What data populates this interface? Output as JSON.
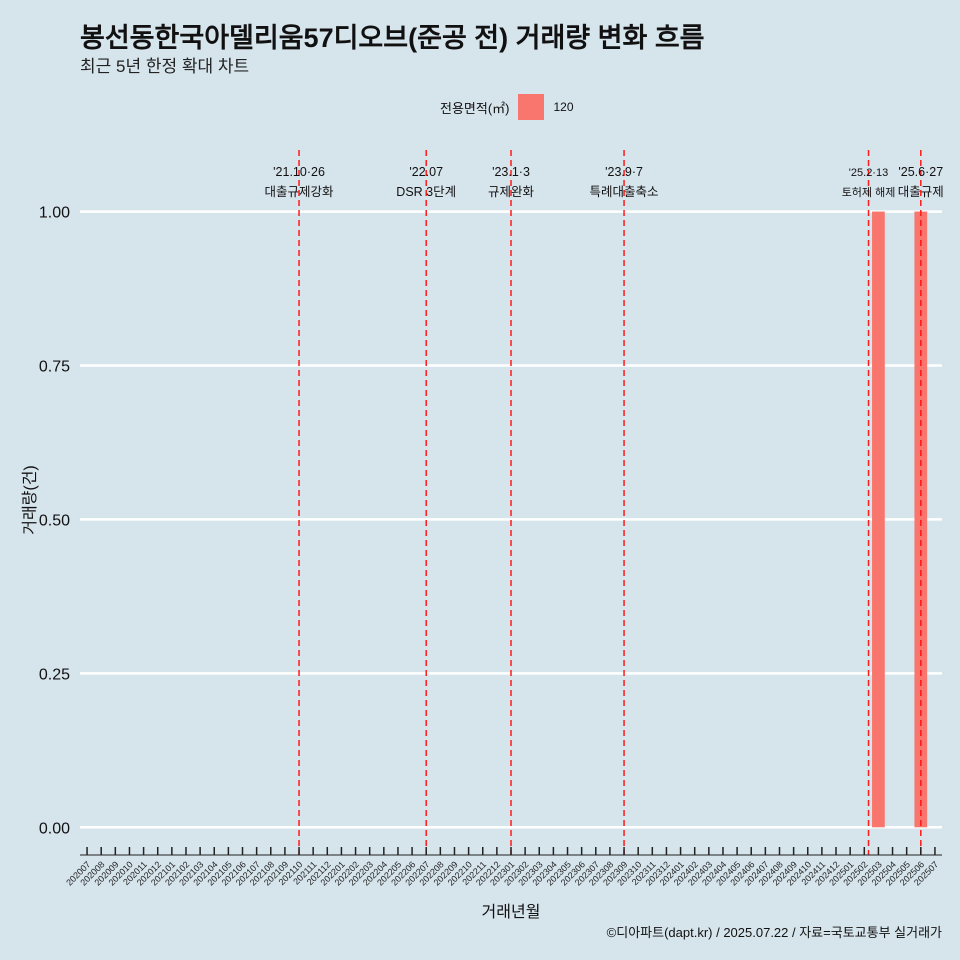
{
  "chart_data": {
    "type": "bar",
    "title": "봉선동한국아델리움57디오브(준공 전) 거래량 변화 흐름",
    "subtitle": "최근 5년 한정 확대 차트",
    "xlabel": "거래년월",
    "ylabel": "거래량(건)",
    "ylim": [
      -0.045,
      1.1
    ],
    "yticks": [
      "0.00",
      "0.25",
      "0.50",
      "0.75",
      "1.00"
    ],
    "ytick_values": [
      0,
      0.25,
      0.5,
      0.75,
      1.0
    ],
    "grid": true,
    "legend_position": "top-center",
    "legend": {
      "title": "전용면적(㎡)",
      "items": [
        {
          "label": "120",
          "color": "#f8766d"
        }
      ]
    },
    "categories": [
      "202007",
      "202008",
      "202009",
      "202010",
      "202011",
      "202012",
      "202101",
      "202102",
      "202103",
      "202104",
      "202105",
      "202106",
      "202107",
      "202108",
      "202109",
      "202110",
      "202111",
      "202112",
      "202201",
      "202202",
      "202203",
      "202204",
      "202205",
      "202206",
      "202207",
      "202208",
      "202209",
      "202210",
      "202211",
      "202212",
      "202301",
      "202302",
      "202303",
      "202304",
      "202305",
      "202306",
      "202307",
      "202308",
      "202309",
      "202310",
      "202311",
      "202312",
      "202401",
      "202402",
      "202403",
      "202404",
      "202405",
      "202406",
      "202407",
      "202408",
      "202409",
      "202410",
      "202411",
      "202412",
      "202501",
      "202502",
      "202503",
      "202504",
      "202505",
      "202506",
      "202507"
    ],
    "series": [
      {
        "name": "120",
        "color": "#f8766d",
        "points": [
          {
            "x": "202503",
            "y": 1
          },
          {
            "x": "202506",
            "y": 1
          }
        ]
      }
    ],
    "annotations": [
      {
        "x": "202110",
        "date": "'21.10·26",
        "label": "대출규제강화"
      },
      {
        "x": "202207",
        "date": "'22.07",
        "label": "DSR 3단계"
      },
      {
        "x": "202301",
        "date": "'23.1·3",
        "label": "규제완화"
      },
      {
        "x": "202309",
        "date": "'23.9·7",
        "label": "특례대출축소"
      },
      {
        "x": "202502",
        "date": "'25.2·13",
        "label": "토허제 해제",
        "offset": 0.3,
        "small": true
      },
      {
        "x": "202506",
        "date": "'25.6·27",
        "label": "대출규제"
      }
    ]
  },
  "caption": "©디아파트(dapt.kr) / 2025.07.22 / 자료=국토교통부 실거래가"
}
